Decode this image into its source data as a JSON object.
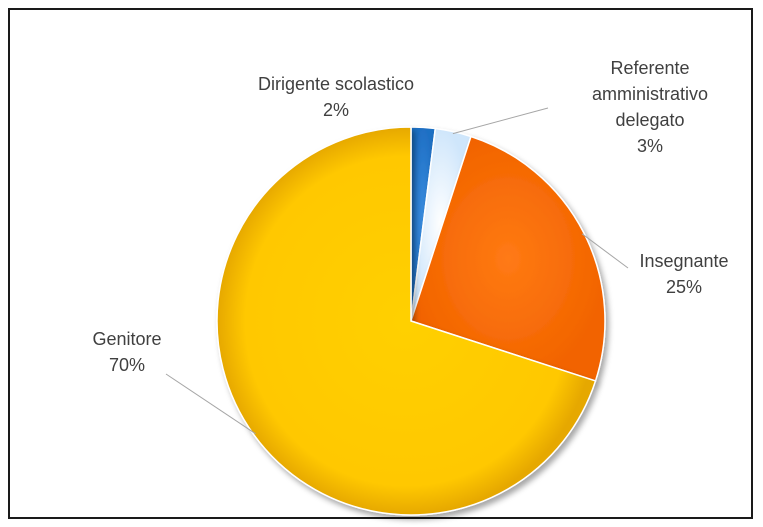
{
  "chart_data": {
    "type": "pie",
    "title": "",
    "slices": [
      {
        "name": "Dirigente scolastico",
        "value": 2,
        "label": "2%",
        "color": "#1f6fc4"
      },
      {
        "name": "Referente amministrativo delegato",
        "value": 3,
        "label": "3%",
        "color": "#d9ecfb"
      },
      {
        "name": "Insegnante",
        "value": 25,
        "label": "25%",
        "color": "#ff6a00"
      },
      {
        "name": "Genitore",
        "value": 70,
        "label": "70%",
        "color": "#ffcc00"
      }
    ],
    "start_angle_deg": 0,
    "direction": "clockwise",
    "legend": "none",
    "data_labels": "outside-with-leader-lines"
  }
}
